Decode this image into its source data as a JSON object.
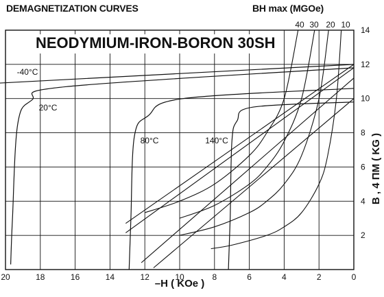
{
  "header": {
    "left": "DEMAGNETIZATION CURVES",
    "right": "BH max (MGOe)"
  },
  "chart_data": {
    "type": "line",
    "title": "NEODYMIUM-IRON-BORON 30SH",
    "xlabel": "–H ( KOe )",
    "ylabel": "B , 4 ПM ( KG )",
    "xlim": [
      20,
      0
    ],
    "ylim": [
      0,
      14
    ],
    "x_ticks": [
      "20",
      "18",
      "16",
      "14",
      "12",
      "10",
      "8",
      "6",
      "4",
      "2",
      "0"
    ],
    "y_ticks": [
      "2",
      "4",
      "6",
      "8",
      "10",
      "12",
      "14"
    ],
    "grid": true,
    "temperature_labels": [
      "-40°C",
      "20°C",
      "80°C",
      "140°C"
    ],
    "bhmax_labels": [
      "40",
      "30",
      "20",
      "10"
    ],
    "series": [
      {
        "kind": "B",
        "temp": "-40°C",
        "x": [
          0,
          20.5
        ],
        "y": [
          12.0,
          10.9
        ]
      },
      {
        "kind": "B",
        "temp": "20°C",
        "x": [
          0,
          16.5,
          18.5,
          19.3,
          19.6,
          19.7
        ],
        "y": [
          11.8,
          10.7,
          9.9,
          8.5,
          3.0,
          0.3
        ]
      },
      {
        "kind": "B",
        "temp": "80°C",
        "x": [
          0,
          9.8,
          11.8,
          12.6,
          12.8,
          12.9
        ],
        "y": [
          10.6,
          10.0,
          9.0,
          7.8,
          3.0,
          0.0
        ]
      },
      {
        "kind": "B",
        "temp": "140°C",
        "x": [
          0,
          5.8,
          6.7,
          7.0,
          7.1,
          7.2
        ],
        "y": [
          9.8,
          9.5,
          8.7,
          7.5,
          3.0,
          0.0
        ]
      },
      {
        "kind": "M",
        "temp": "-40°C",
        "x": [
          0,
          13.1
        ],
        "y": [
          12.0,
          2.7
        ]
      },
      {
        "kind": "M",
        "temp": "20°C",
        "x": [
          0,
          13.1
        ],
        "y": [
          11.8,
          2.15
        ]
      },
      {
        "kind": "M",
        "temp": "80°C",
        "x": [
          0,
          12.2
        ],
        "y": [
          11.2,
          0.4
        ]
      },
      {
        "kind": "M",
        "temp": "140°C",
        "x": [
          0,
          11.5
        ],
        "y": [
          10.0,
          0.1
        ]
      },
      {
        "kind": "BHmax",
        "value": 40,
        "x": [
          3.2,
          4.0,
          5.0,
          6.0,
          8.0,
          10.0,
          12.0
        ],
        "y": [
          14,
          10.0,
          8.0,
          6.67,
          5.0,
          4.0,
          3.33
        ]
      },
      {
        "kind": "BHmax",
        "value": 30,
        "x": [
          2.25,
          3.0,
          4.0,
          5.0,
          6.0,
          8.0,
          10.0
        ],
        "y": [
          14,
          10.0,
          7.5,
          6.0,
          5.0,
          3.75,
          3.0
        ]
      },
      {
        "kind": "BHmax",
        "value": 20,
        "x": [
          1.45,
          2.0,
          3.0,
          4.0,
          5.0,
          6.0,
          8.0,
          10.0
        ],
        "y": [
          14,
          10.0,
          6.67,
          5.0,
          4.0,
          3.33,
          2.5,
          2.0
        ]
      },
      {
        "kind": "BHmax",
        "value": 10,
        "x": [
          0.72,
          1.0,
          1.5,
          2.0,
          3.0,
          4.0,
          5.0,
          7.0,
          8.2
        ],
        "y": [
          14,
          10.0,
          6.67,
          5.0,
          3.33,
          2.5,
          2.0,
          1.43,
          1.22
        ]
      }
    ]
  }
}
